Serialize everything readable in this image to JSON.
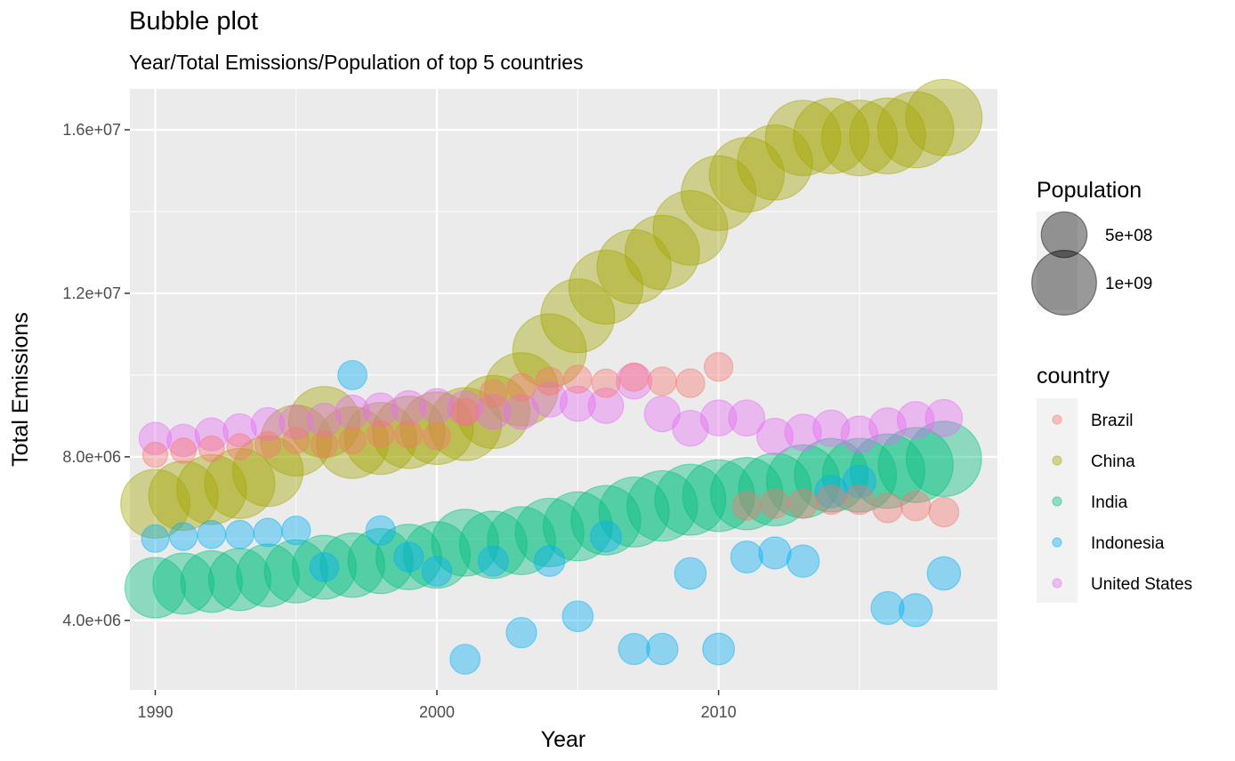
{
  "chart_data": {
    "type": "scatter",
    "title": "Bubble plot",
    "subtitle": "Year/Total Emissions/Population of top 5 countries",
    "xlabel": "Year",
    "ylabel": "Total Emissions",
    "xlim": [
      1989.1,
      2019.9
    ],
    "ylim": [
      2300000,
      17000000
    ],
    "x_ticks": [
      1990,
      2000,
      2010
    ],
    "x_tick_labels": [
      "1990",
      "2000",
      "2010"
    ],
    "y_ticks": [
      4000000,
      8000000,
      12000000,
      16000000
    ],
    "y_tick_labels": [
      "4.0e+06",
      "8.0e+06",
      "1.2e+07",
      "1.6e+07"
    ],
    "grid": true,
    "size_legend": {
      "title": "Population",
      "items": [
        {
          "label": "5e+08",
          "value": 500000000
        },
        {
          "label": "1e+09",
          "value": 1000000000
        }
      ]
    },
    "color_legend": {
      "title": "country",
      "placement": "right"
    },
    "colors": {
      "Brazil": "#F8766D",
      "China": "#A3A500",
      "India": "#00BF7D",
      "Indonesia": "#00B0F6",
      "United States": "#E76BF3"
    },
    "series": [
      {
        "name": "Brazil",
        "x": [
          1990,
          1991,
          1992,
          1993,
          1994,
          1995,
          1996,
          1997,
          1998,
          1999,
          2000,
          2001,
          2002,
          2003,
          2004,
          2005,
          2006,
          2007,
          2008,
          2009,
          2010,
          2011,
          2012,
          2013,
          2014,
          2015,
          2016,
          2017,
          2018
        ],
        "y": [
          8050000,
          8150000,
          8200000,
          8250000,
          8300000,
          8400000,
          8300000,
          8400000,
          8550000,
          8550000,
          8500000,
          9100000,
          9550000,
          9700000,
          9850000,
          9900000,
          9800000,
          9950000,
          9850000,
          9800000,
          10200000,
          6800000,
          6850000,
          6850000,
          6950000,
          6950000,
          6750000,
          6800000,
          6650000
        ],
        "population": [
          150000000,
          153000000,
          156000000,
          159000000,
          162000000,
          165000000,
          168000000,
          171000000,
          173000000,
          176000000,
          175000000,
          178000000,
          180000000,
          183000000,
          185000000,
          187000000,
          190000000,
          192000000,
          194000000,
          196000000,
          196000000,
          198000000,
          200000000,
          202000000,
          204000000,
          206000000,
          208000000,
          209000000,
          210000000
        ]
      },
      {
        "name": "China",
        "x": [
          1990,
          1991,
          1992,
          1993,
          1994,
          1995,
          1996,
          1997,
          1998,
          1999,
          2000,
          2001,
          2002,
          2003,
          2004,
          2005,
          2006,
          2007,
          2008,
          2009,
          2010,
          2011,
          2012,
          2013,
          2014,
          2015,
          2016,
          2017,
          2018
        ],
        "y": [
          6850000,
          7050000,
          7200000,
          7350000,
          7650000,
          8400000,
          8850000,
          8350000,
          8450000,
          8600000,
          8700000,
          8800000,
          9100000,
          9650000,
          10600000,
          11450000,
          12150000,
          12650000,
          13000000,
          13600000,
          14450000,
          14900000,
          15200000,
          15800000,
          15850000,
          15800000,
          15850000,
          16000000,
          16300000
        ],
        "population": [
          1140000000,
          1150000000,
          1165000000,
          1180000000,
          1190000000,
          1205000000,
          1215000000,
          1230000000,
          1240000000,
          1250000000,
          1260000000,
          1270000000,
          1280000000,
          1290000000,
          1297000000,
          1305000000,
          1312000000,
          1318000000,
          1325000000,
          1331000000,
          1338000000,
          1344000000,
          1351000000,
          1357000000,
          1364000000,
          1371000000,
          1378000000,
          1386000000,
          1393000000
        ]
      },
      {
        "name": "India",
        "x": [
          1990,
          1991,
          1992,
          1993,
          1994,
          1995,
          1996,
          1997,
          1998,
          1999,
          2000,
          2001,
          2002,
          2003,
          2004,
          2005,
          2006,
          2007,
          2008,
          2009,
          2010,
          2011,
          2012,
          2013,
          2014,
          2015,
          2016,
          2017,
          2018
        ],
        "y": [
          4800000,
          4900000,
          4950000,
          5000000,
          5100000,
          5200000,
          5300000,
          5350000,
          5450000,
          5550000,
          5600000,
          5900000,
          5850000,
          5950000,
          6150000,
          6300000,
          6450000,
          6650000,
          6800000,
          6950000,
          7050000,
          7100000,
          7200000,
          7400000,
          7550000,
          7550000,
          7650000,
          7800000,
          7950000
        ],
        "population": [
          873000000,
          890000000,
          907000000,
          924000000,
          941000000,
          958000000,
          975000000,
          992000000,
          1009000000,
          1026000000,
          1056000000,
          1071000000,
          1088000000,
          1105000000,
          1122000000,
          1139000000,
          1156000000,
          1172000000,
          1188000000,
          1204000000,
          1234000000,
          1250000000,
          1265000000,
          1280000000,
          1294000000,
          1309000000,
          1324000000,
          1339000000,
          1353000000
        ]
      },
      {
        "name": "Indonesia",
        "x": [
          1990,
          1991,
          1992,
          1993,
          1994,
          1995,
          1996,
          1997,
          1998,
          1999,
          2000,
          2001,
          2002,
          2003,
          2004,
          2005,
          2006,
          2007,
          2008,
          2009,
          2010,
          2011,
          2012,
          2013,
          2014,
          2015,
          2016,
          2017,
          2018
        ],
        "y": [
          6000000,
          6050000,
          6100000,
          6100000,
          6150000,
          6200000,
          5300000,
          10000000,
          6200000,
          5550000,
          5200000,
          3050000,
          5450000,
          3700000,
          5450000,
          4100000,
          6050000,
          3300000,
          3300000,
          5150000,
          3300000,
          5550000,
          5650000,
          5450000,
          7150000,
          7400000,
          4300000,
          4250000,
          5150000
        ],
        "population": [
          181000000,
          184000000,
          187000000,
          190000000,
          193000000,
          196000000,
          199000000,
          202000000,
          205000000,
          208000000,
          211000000,
          214000000,
          217000000,
          220000000,
          223000000,
          226000000,
          229000000,
          232000000,
          235000000,
          238000000,
          241000000,
          244000000,
          247000000,
          250000000,
          253000000,
          256000000,
          259000000,
          262000000,
          265000000
        ]
      },
      {
        "name": "United States",
        "x": [
          1990,
          1991,
          1992,
          1993,
          1994,
          1995,
          1996,
          1997,
          1998,
          1999,
          2000,
          2001,
          2002,
          2003,
          2004,
          2005,
          2006,
          2007,
          2008,
          2009,
          2010,
          2011,
          2012,
          2013,
          2014,
          2015,
          2016,
          2017,
          2018
        ],
        "y": [
          8450000,
          8400000,
          8550000,
          8650000,
          8800000,
          8850000,
          8900000,
          9100000,
          9150000,
          9200000,
          9250000,
          9200000,
          9100000,
          9100000,
          9400000,
          9300000,
          9250000,
          9850000,
          9050000,
          8700000,
          8950000,
          8950000,
          8500000,
          8600000,
          8700000,
          8550000,
          8750000,
          8900000,
          8950000
        ],
        "population": [
          250000000,
          253000000,
          257000000,
          260000000,
          263000000,
          266000000,
          269000000,
          272000000,
          275000000,
          279000000,
          282000000,
          285000000,
          288000000,
          290000000,
          293000000,
          296000000,
          298000000,
          301000000,
          304000000,
          307000000,
          309000000,
          311000000,
          314000000,
          316000000,
          318000000,
          321000000,
          323000000,
          325000000,
          327000000
        ]
      }
    ]
  }
}
